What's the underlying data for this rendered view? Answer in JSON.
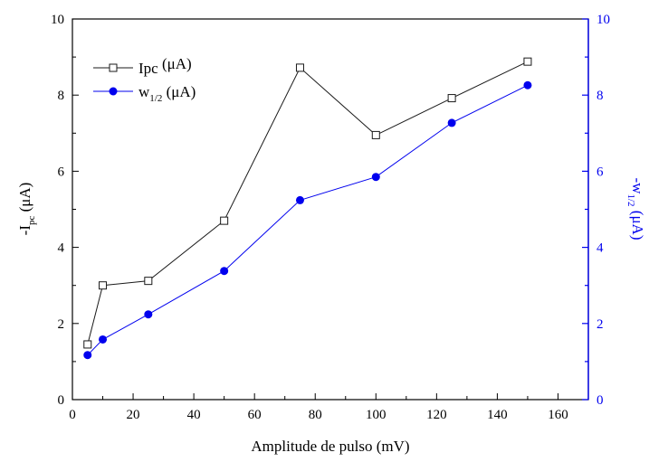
{
  "chart_data": {
    "type": "line",
    "x": [
      5,
      10,
      25,
      50,
      75,
      100,
      125,
      150
    ],
    "xlabel": "Amplitude de pulso (mV)",
    "xlim": [
      0,
      170
    ],
    "xticks": [
      "0",
      "20",
      "40",
      "60",
      "80",
      "100",
      "120",
      "140",
      "160"
    ],
    "ylabel_left": {
      "main": "-I",
      "sub": "pc",
      "unit": " (μA)"
    },
    "ylabel_right": {
      "main": "-w",
      "sub": "1/2",
      "unit": " (μA)"
    },
    "ylim_left": [
      0,
      10
    ],
    "ylim_right": [
      0,
      10
    ],
    "yticks_left": [
      "0",
      "2",
      "4",
      "6",
      "8",
      "10"
    ],
    "yticks_right": [
      "0",
      "2",
      "4",
      "6",
      "8",
      "10"
    ],
    "grid": false,
    "legend_position": "top-left",
    "series": [
      {
        "name_main": "Ipc",
        "name_sub": "",
        "name_unit": " (μA)",
        "axis": "left",
        "marker": "open-square",
        "color": "#1a1a1a",
        "values": [
          1.45,
          3.0,
          3.12,
          4.7,
          8.72,
          6.95,
          7.92,
          8.88
        ]
      },
      {
        "name_main": "w",
        "name_sub": "1/2",
        "name_unit": " (μA)",
        "axis": "right",
        "marker": "filled-circle",
        "color": "#0000ee",
        "values": [
          1.17,
          1.58,
          2.24,
          3.38,
          5.24,
          5.85,
          7.27,
          8.26
        ]
      }
    ],
    "colors": {
      "left_axis": "#000000",
      "right_axis": "#0000ee"
    }
  }
}
